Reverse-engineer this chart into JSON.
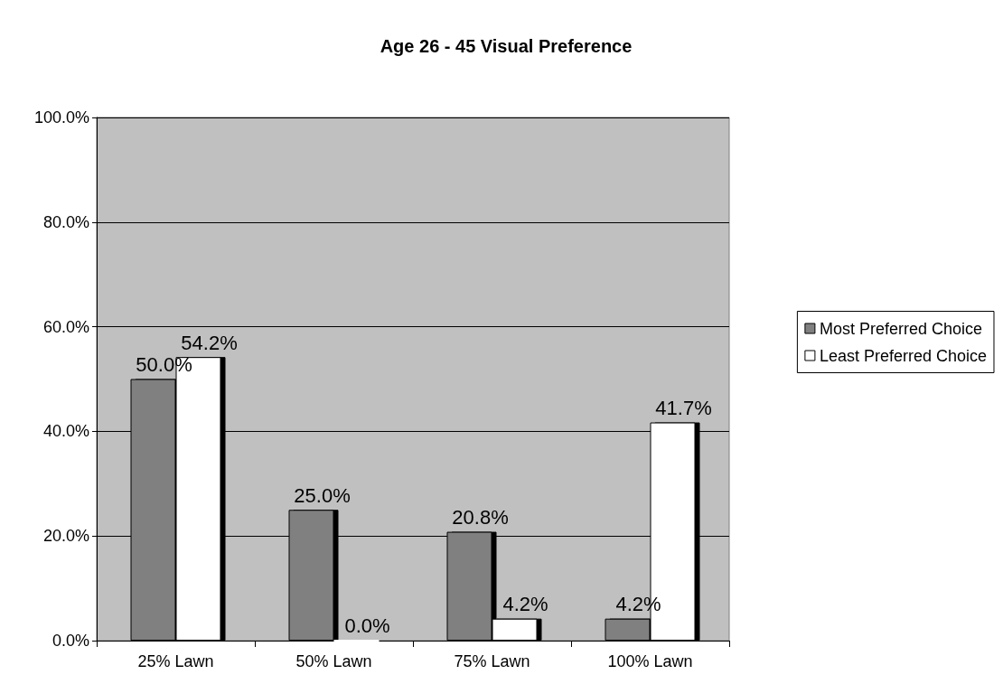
{
  "chart_data": {
    "type": "bar",
    "title": "Age 26 - 45 Visual Preference",
    "categories": [
      "25% Lawn",
      "50% Lawn",
      "75% Lawn",
      "100% Lawn"
    ],
    "series": [
      {
        "name": "Most Preferred Choice",
        "color": "#808080",
        "values": [
          50.0,
          25.0,
          20.8,
          4.2
        ],
        "value_labels": [
          "50.0%",
          "25.0%",
          "20.8%",
          "4.2%"
        ]
      },
      {
        "name": "Least Preferred Choice",
        "color": "#ffffff",
        "values": [
          54.2,
          0.0,
          4.2,
          41.7
        ],
        "value_labels": [
          "54.2%",
          "0.0%",
          "4.2%",
          "41.7%"
        ]
      }
    ],
    "ylim": [
      0,
      100
    ],
    "yticks": [
      {
        "value": 0,
        "label": "0.0%"
      },
      {
        "value": 20,
        "label": "20.0%"
      },
      {
        "value": 40,
        "label": "40.0%"
      },
      {
        "value": 60,
        "label": "60.0%"
      },
      {
        "value": 80,
        "label": "80.0%"
      },
      {
        "value": 100,
        "label": "100.0%"
      }
    ],
    "grid": "y",
    "legend": "right"
  }
}
